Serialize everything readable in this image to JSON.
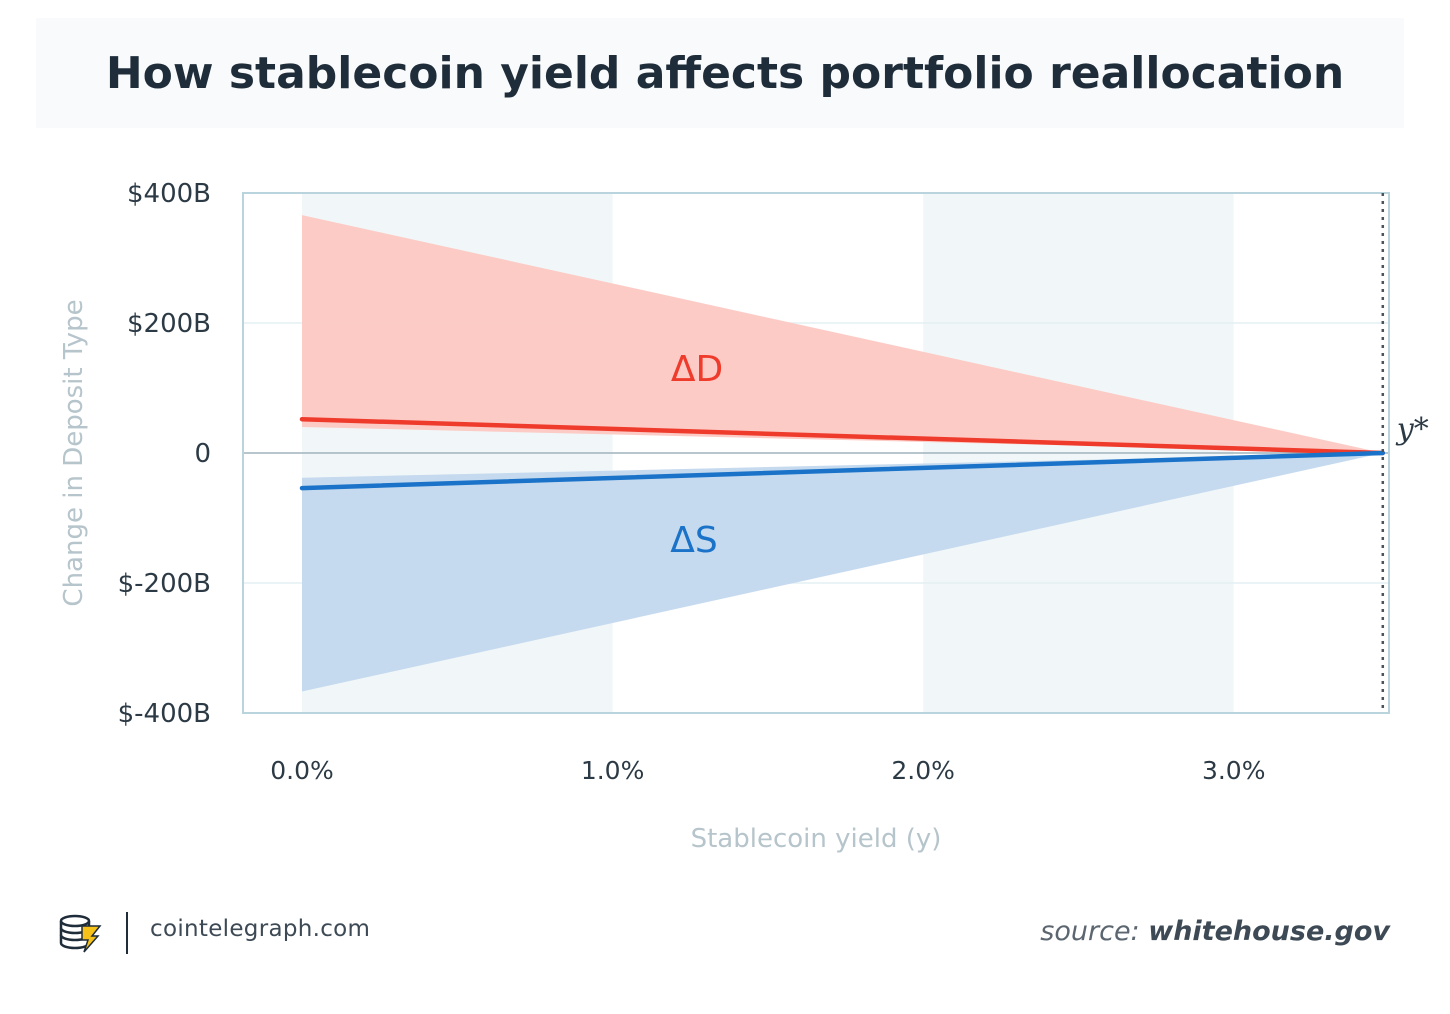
{
  "colors": {
    "demand": "#ef3b2c",
    "demand_band": "#fcc8c2",
    "stable": "#1a73c8",
    "stable_band": "#c3d8ee",
    "stripe": "#f1f7f8",
    "axis": "#b9d4dc",
    "text_dark": "#2c3a45",
    "text_muted": "#b6c4cb"
  },
  "chart_data": {
    "type": "area",
    "title": "How stablecoin yield affects portfolio reallocation",
    "xlabel": "Stablecoin yield (y)",
    "ylabel": "Change in Deposit Type",
    "xlim": [
      -0.19,
      3.5
    ],
    "ylim": [
      -400,
      400
    ],
    "x_ticks": [
      0,
      1,
      2,
      3
    ],
    "x_tick_labels": [
      "0.0%",
      "1.0%",
      "2.0%",
      "3.0%"
    ],
    "y_ticks": [
      400,
      200,
      0,
      -200,
      -400
    ],
    "y_tick_labels": [
      "$400B",
      "$200B",
      "0",
      "$-200B",
      "$-400B"
    ],
    "stripes": [
      [
        0,
        1
      ],
      [
        2,
        3
      ]
    ],
    "y_star": {
      "x": 3.48,
      "label": "y*"
    },
    "series": [
      {
        "name": "ΔD",
        "line": [
          [
            0,
            52
          ],
          [
            3.48,
            0
          ]
        ],
        "band_upper": [
          [
            0,
            366
          ],
          [
            3.48,
            0
          ]
        ],
        "band_lower": [
          [
            0,
            40
          ],
          [
            3.48,
            0
          ]
        ]
      },
      {
        "name": "ΔS",
        "line": [
          [
            0,
            -54
          ],
          [
            3.48,
            0
          ]
        ],
        "band_upper": [
          [
            0,
            -38
          ],
          [
            3.48,
            0
          ]
        ],
        "band_lower": [
          [
            0,
            -367
          ],
          [
            3.48,
            0
          ]
        ]
      }
    ]
  },
  "footer": {
    "site": "cointelegraph.com",
    "source_prefix": "source:",
    "source_host": "whitehouse.gov"
  }
}
